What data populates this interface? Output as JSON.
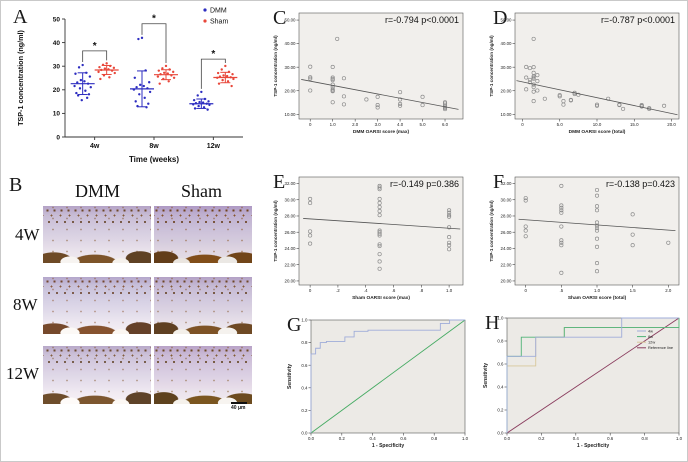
{
  "figure": {
    "background": "#ffffff",
    "border_color": "#c9c9c9"
  },
  "panel_b": {
    "label": "B",
    "columns": [
      "DMM",
      "Sham"
    ],
    "rows": [
      "4W",
      "8W",
      "12W"
    ],
    "scale_label": "40 μm"
  },
  "chart_data": [
    {
      "label": "A",
      "type": "dotplot",
      "xlabel": "Time (weeks)",
      "ylabel": "TSP-1 concentration (ng/ml)",
      "categories": [
        "4w",
        "8w",
        "12w"
      ],
      "ylim": [
        0,
        50
      ],
      "yticks": [
        0,
        10,
        20,
        30,
        40,
        50
      ],
      "significance": [
        "*",
        "*",
        "*"
      ],
      "sig_y": [
        36.5,
        48,
        33
      ],
      "series": [
        {
          "name": "DMM",
          "color": "#2d2dc0",
          "means": [
            22.6,
            20.4,
            14.1
          ],
          "sd": [
            4.6,
            7.6,
            2.0
          ],
          "points": [
            [
              30.5,
              29.5,
              27.2,
              26.8,
              25.6,
              24.1,
              23.6,
              23.1,
              22.6,
              21.6,
              21.1,
              20.6,
              19.6,
              18.6,
              18.1,
              17.6,
              16.6,
              15.6
            ],
            [
              42,
              41.5,
              28.2,
              25.1,
              23.2,
              22.1,
              21.6,
              21.1,
              20.6,
              20.1,
              19.1,
              18.1,
              16.6,
              15.1,
              14.1,
              13.1,
              12.6
            ],
            [
              19.1,
              17.6,
              16.1,
              15.6,
              15.1,
              14.8,
              14.6,
              14.3,
              14.1,
              13.8,
              13.6,
              13.1,
              12.6,
              12.1,
              11.6
            ]
          ]
        },
        {
          "name": "Sham",
          "color": "#e8473a",
          "means": [
            28.4,
            26.4,
            25.2
          ],
          "sd": [
            1.9,
            2.1,
            2.2
          ],
          "points": [
            [
              31.2,
              30.6,
              30.1,
              29.6,
              29.3,
              29,
              28.7,
              28.4,
              28.1,
              27.6,
              27.1,
              26.1,
              25.3,
              24.6
            ],
            [
              30.1,
              29.1,
              28.6,
              28.1,
              27.6,
              27.2,
              26.9,
              26.6,
              26.1,
              25.6,
              25.1,
              24.6,
              23.6,
              22.6
            ],
            [
              30.1,
              28.6,
              27.6,
              27.1,
              26.6,
              26.1,
              25.8,
              25.6,
              25.3,
              25.1,
              24.6,
              24.1,
              23.6,
              22.6,
              21.6
            ]
          ]
        }
      ]
    },
    {
      "label": "C",
      "type": "scatter",
      "stats": "r=-0.794 p<0.0001",
      "xlabel": "DMM OARSI score (max)",
      "ylabel": "TSP-1 concentration (ng/ml)",
      "xlim": [
        -0.5,
        6.8
      ],
      "xticks": [
        0,
        1,
        2,
        3,
        4,
        5,
        6
      ],
      "xtick_labels": [
        "0",
        "1.0",
        "2.0",
        "3.0",
        "4.0",
        "5.0",
        "6.0"
      ],
      "ylim": [
        8,
        53
      ],
      "yticks": [
        10,
        20,
        30,
        40,
        50
      ],
      "ytick_labels": [
        "10.00",
        "20.00",
        "30.00",
        "40.00",
        "50.00"
      ],
      "plot_bg": "#f1efec",
      "points": [
        [
          0,
          30.2
        ],
        [
          0,
          25.7
        ],
        [
          0,
          25.1
        ],
        [
          0,
          20.1
        ],
        [
          1,
          30.1
        ],
        [
          1,
          25.6
        ],
        [
          1,
          25
        ],
        [
          1,
          24.5
        ],
        [
          1,
          22.6
        ],
        [
          1,
          21.6
        ],
        [
          1,
          20.6
        ],
        [
          1,
          20.1
        ],
        [
          1,
          19.8
        ],
        [
          1,
          15.1
        ],
        [
          1.2,
          42
        ],
        [
          1.5,
          25.3
        ],
        [
          1.5,
          17.6
        ],
        [
          1.5,
          14.2
        ],
        [
          2.5,
          16.3
        ],
        [
          3,
          17.4
        ],
        [
          3,
          13.9
        ],
        [
          3,
          12.9
        ],
        [
          4,
          19.4
        ],
        [
          4,
          16.3
        ],
        [
          4,
          14.4
        ],
        [
          4,
          13.6
        ],
        [
          5,
          17.4
        ],
        [
          5,
          13.9
        ],
        [
          6,
          15.1
        ],
        [
          6,
          14.6
        ],
        [
          6,
          13.7
        ],
        [
          6,
          13.2
        ],
        [
          6,
          12.7
        ],
        [
          6,
          12.2
        ]
      ],
      "regression": [
        [
          -0.4,
          24.8
        ],
        [
          6.6,
          12.1
        ]
      ]
    },
    {
      "label": "D",
      "type": "scatter",
      "stats": "r=-0.787 p<0.0001",
      "xlabel": "DMM OARSI score (total)",
      "ylabel": "TSP-1 concentration (ng/ml)",
      "xlim": [
        -1,
        21
      ],
      "xticks": [
        0,
        5,
        10,
        15,
        20
      ],
      "xtick_labels": [
        "0",
        "5.0",
        "10.0",
        "15.0",
        "20.0"
      ],
      "ylim": [
        8,
        53
      ],
      "yticks": [
        10,
        20,
        30,
        40,
        50
      ],
      "ytick_labels": [
        "10.00",
        "20.00",
        "30.00",
        "40.00",
        "50.00"
      ],
      "plot_bg": "#f1efec",
      "points": [
        [
          0.5,
          30.1
        ],
        [
          0.5,
          25.6
        ],
        [
          0.5,
          20.6
        ],
        [
          1,
          29.6
        ],
        [
          1,
          24.6
        ],
        [
          1,
          23.6
        ],
        [
          1.5,
          42
        ],
        [
          1.5,
          30
        ],
        [
          1.5,
          27.6
        ],
        [
          1.5,
          26.1
        ],
        [
          1.5,
          25.6
        ],
        [
          1.5,
          25.1
        ],
        [
          1.5,
          22.6
        ],
        [
          1.5,
          21.6
        ],
        [
          1.5,
          19.6
        ],
        [
          1.5,
          15.6
        ],
        [
          2,
          26.6
        ],
        [
          2,
          24.1
        ],
        [
          2,
          20.1
        ],
        [
          3,
          16.6
        ],
        [
          5,
          18.1
        ],
        [
          5,
          17.6
        ],
        [
          5.5,
          15.6
        ],
        [
          5.5,
          14.1
        ],
        [
          6.5,
          16.1
        ],
        [
          6.5,
          15.9
        ],
        [
          7,
          19.1
        ],
        [
          7,
          18.6
        ],
        [
          7.5,
          18.3
        ],
        [
          10,
          14.1
        ],
        [
          10,
          13.6
        ],
        [
          11.5,
          16.6
        ],
        [
          13,
          14.1
        ],
        [
          13,
          13.9
        ],
        [
          13.5,
          12.3
        ],
        [
          16,
          13.9
        ],
        [
          16,
          13.6
        ],
        [
          16,
          13.3
        ],
        [
          17,
          12.6
        ],
        [
          17,
          12.3
        ],
        [
          19,
          13.6
        ]
      ],
      "regression": [
        [
          -0.8,
          24.3
        ],
        [
          20.8,
          9.8
        ]
      ]
    },
    {
      "label": "E",
      "type": "scatter",
      "stats": "r=-0.149 p=0.386",
      "xlabel": "Sham OARSI score (max)",
      "ylabel": "TSP-1 concentration (ng/ml)",
      "xlim": [
        -0.08,
        1.1
      ],
      "xticks": [
        0,
        0.2,
        0.4,
        0.6,
        0.8,
        1
      ],
      "xtick_labels": [
        "0",
        ".2",
        ".4",
        ".6",
        ".8",
        "1.0"
      ],
      "ylim": [
        19.5,
        32.8
      ],
      "yticks": [
        20,
        22,
        24,
        26,
        28,
        30,
        32
      ],
      "ytick_labels": [
        "20.00",
        "22.00",
        "24.00",
        "26.00",
        "28.00",
        "30.00",
        "32.00"
      ],
      "plot_bg": "#f1efec",
      "points": [
        [
          0,
          30.1
        ],
        [
          0,
          29.6
        ],
        [
          0,
          26.1
        ],
        [
          0,
          25.6
        ],
        [
          0,
          24.6
        ],
        [
          0.5,
          31.7
        ],
        [
          0.5,
          31.5
        ],
        [
          0.5,
          31.3
        ],
        [
          0.5,
          30.1
        ],
        [
          0.5,
          29.6
        ],
        [
          0.5,
          29.1
        ],
        [
          0.5,
          28.6
        ],
        [
          0.5,
          28.1
        ],
        [
          0.5,
          26.2
        ],
        [
          0.5,
          26
        ],
        [
          0.5,
          25.8
        ],
        [
          0.5,
          25.6
        ],
        [
          0.5,
          24.5
        ],
        [
          0.5,
          24.3
        ],
        [
          0.5,
          23.3
        ],
        [
          0.5,
          22.4
        ],
        [
          0.5,
          21.5
        ],
        [
          1,
          28.7
        ],
        [
          1,
          28.4
        ],
        [
          1,
          28.1
        ],
        [
          1,
          27.9
        ],
        [
          1,
          26.6
        ],
        [
          1,
          25.4
        ],
        [
          1,
          24.7
        ],
        [
          1,
          24.4
        ],
        [
          1,
          23.9
        ]
      ],
      "regression": [
        [
          -0.05,
          27.7
        ],
        [
          1.08,
          26.4
        ]
      ]
    },
    {
      "label": "F",
      "type": "scatter",
      "stats": "r=-0.138 p=0.423",
      "xlabel": "Sham OARSI score (total)",
      "ylabel": "TSP-1 concentration (ng/ml)",
      "xlim": [
        -0.15,
        2.15
      ],
      "xticks": [
        0,
        0.5,
        1,
        1.5,
        2
      ],
      "xtick_labels": [
        "0",
        ".5",
        "1.0",
        "1.5",
        "2.0"
      ],
      "ylim": [
        19.5,
        32.8
      ],
      "yticks": [
        20,
        22,
        24,
        26,
        28,
        30,
        32
      ],
      "ytick_labels": [
        "20.00",
        "22.00",
        "24.00",
        "26.00",
        "28.00",
        "30.00",
        "32.00"
      ],
      "plot_bg": "#f1efec",
      "points": [
        [
          0,
          30.2
        ],
        [
          0,
          29.9
        ],
        [
          0,
          26.7
        ],
        [
          0,
          26.2
        ],
        [
          0,
          25.5
        ],
        [
          0.5,
          31.7
        ],
        [
          0.5,
          29.3
        ],
        [
          0.5,
          29
        ],
        [
          0.5,
          28.7
        ],
        [
          0.5,
          28.4
        ],
        [
          0.5,
          26.7
        ],
        [
          0.5,
          25
        ],
        [
          0.5,
          24.7
        ],
        [
          0.5,
          24.4
        ],
        [
          0.5,
          21
        ],
        [
          1,
          31.2
        ],
        [
          1,
          30.5
        ],
        [
          1,
          29.2
        ],
        [
          1,
          28.7
        ],
        [
          1,
          27.2
        ],
        [
          1,
          26.8
        ],
        [
          1,
          26.5
        ],
        [
          1,
          26.2
        ],
        [
          1,
          25.2
        ],
        [
          1,
          24.2
        ],
        [
          1,
          22.2
        ],
        [
          1,
          21.2
        ],
        [
          1.5,
          28.2
        ],
        [
          1.5,
          25.7
        ],
        [
          1.5,
          24.4
        ],
        [
          2,
          24.7
        ]
      ],
      "regression": [
        [
          -0.1,
          27.6
        ],
        [
          2.1,
          26.2
        ]
      ]
    },
    {
      "label": "G",
      "type": "roc",
      "xlabel": "1 - Specificity",
      "ylabel": "Sensitivity",
      "ticks": [
        0,
        0.2,
        0.4,
        0.6,
        0.8,
        1
      ],
      "tick_labels": [
        "0.0",
        "0.2",
        "0.4",
        "0.6",
        "0.8",
        "1.0"
      ],
      "plot_bg": "#eceae6",
      "legend": false,
      "series": [
        {
          "name": "Reference line",
          "color": "#46ab63",
          "points": [
            [
              0,
              0
            ],
            [
              1,
              1
            ]
          ]
        },
        {
          "name": "TSP-1",
          "color": "#9facd9",
          "points": [
            [
              0,
              0
            ],
            [
              0,
              0.7
            ],
            [
              0.03,
              0.7
            ],
            [
              0.03,
              0.75
            ],
            [
              0.06,
              0.75
            ],
            [
              0.06,
              0.8
            ],
            [
              0.1,
              0.8
            ],
            [
              0.1,
              0.81
            ],
            [
              0.22,
              0.81
            ],
            [
              0.22,
              0.85
            ],
            [
              0.28,
              0.85
            ],
            [
              0.28,
              0.9
            ],
            [
              0.37,
              0.9
            ],
            [
              0.37,
              0.91
            ],
            [
              0.84,
              0.91
            ],
            [
              0.84,
              0.97
            ],
            [
              0.9,
              0.97
            ],
            [
              0.9,
              1
            ],
            [
              1,
              1
            ]
          ]
        }
      ]
    },
    {
      "label": "H",
      "type": "roc",
      "xlabel": "1 - Specificity",
      "ylabel": "Sensitivity",
      "ticks": [
        0,
        0.2,
        0.4,
        0.6,
        0.8,
        1
      ],
      "tick_labels": [
        "0.0",
        "0.2",
        "0.4",
        "0.6",
        "0.8",
        "1.0"
      ],
      "plot_bg": "#eceae6",
      "legend": true,
      "legend_order": [
        "4w",
        "8w",
        "12w",
        "Reference line"
      ],
      "series": [
        {
          "name": "Reference line",
          "color": "#8a3d5e",
          "points": [
            [
              0,
              0
            ],
            [
              1,
              1
            ]
          ]
        },
        {
          "name": "12w",
          "color": "#d8c89b",
          "points": [
            [
              0,
              0
            ],
            [
              0,
              0.583
            ],
            [
              0.167,
              0.583
            ],
            [
              0.167,
              0.833
            ],
            [
              0.333,
              0.833
            ],
            [
              0.333,
              0.917
            ],
            [
              1,
              0.917
            ],
            [
              1,
              1
            ]
          ]
        },
        {
          "name": "8w",
          "color": "#4fb377",
          "points": [
            [
              0,
              0
            ],
            [
              0,
              0.667
            ],
            [
              0.083,
              0.667
            ],
            [
              0.083,
              0.833
            ],
            [
              0.333,
              0.833
            ],
            [
              0.333,
              0.917
            ],
            [
              1,
              0.917
            ],
            [
              1,
              1
            ]
          ]
        },
        {
          "name": "4w",
          "color": "#9facd9",
          "points": [
            [
              0,
              0
            ],
            [
              0,
              0.667
            ],
            [
              0.167,
              0.667
            ],
            [
              0.167,
              0.833
            ],
            [
              0.667,
              0.833
            ],
            [
              0.667,
              1
            ],
            [
              1,
              1
            ]
          ]
        }
      ]
    }
  ]
}
